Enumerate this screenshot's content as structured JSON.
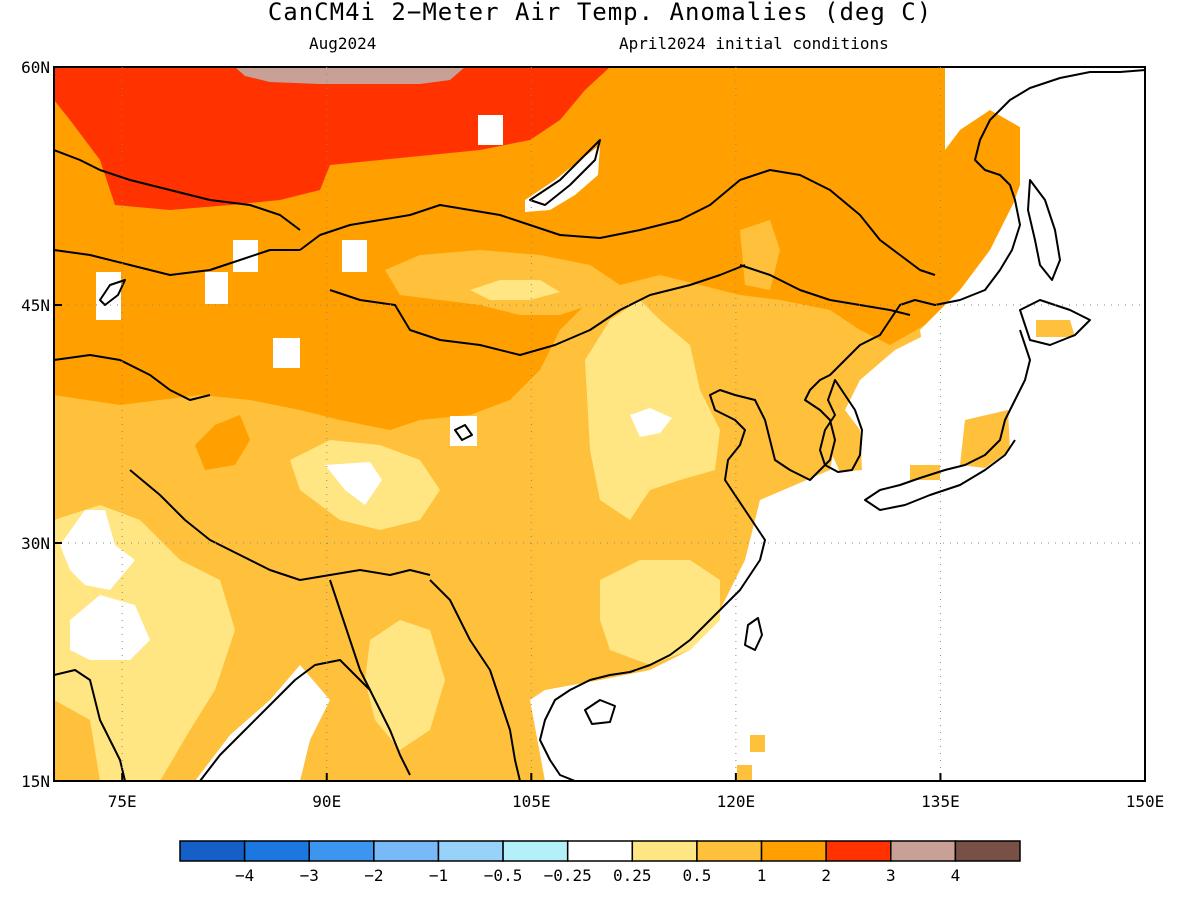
{
  "title": "CanCM4i 2−Meter Air Temp. Anomalies (deg C)",
  "subtitle_left": "Aug2024",
  "subtitle_right": "April2024 initial conditions",
  "map": {
    "lon_range": [
      70,
      150
    ],
    "lat_range": [
      15,
      60
    ],
    "lon_ticks": [
      {
        "lon": 75,
        "label": "75E"
      },
      {
        "lon": 90,
        "label": "90E"
      },
      {
        "lon": 105,
        "label": "105E"
      },
      {
        "lon": 120,
        "label": "120E"
      },
      {
        "lon": 135,
        "label": "135E"
      },
      {
        "lon": 150,
        "label": "150E"
      }
    ],
    "lat_ticks": [
      {
        "lat": 60,
        "label": "60N"
      },
      {
        "lat": 45,
        "label": "45N"
      },
      {
        "lat": 30,
        "label": "30N"
      },
      {
        "lat": 15,
        "label": "15N"
      }
    ],
    "gridlines": "dotted"
  },
  "colorbar": {
    "colors": [
      "#1560c8",
      "#1c78e0",
      "#3c96f0",
      "#78b9f8",
      "#96d2fa",
      "#b4f0fa",
      "#ffffff",
      "#ffe682",
      "#ffc03c",
      "#ffa000",
      "#ff3200",
      "#c8a096",
      "#785046"
    ],
    "labels": [
      "−4",
      "−3",
      "−2",
      "−1",
      "−0.5",
      "−0.25",
      "0.25",
      "0.5",
      "1",
      "2",
      "3",
      "4"
    ]
  },
  "colors": {
    "anomaly_0_25_0_5": "#ffe682",
    "anomaly_0_5_1": "#ffc03c",
    "anomaly_1_2": "#ffa000",
    "anomaly_2_3": "#ff3200",
    "anomaly_3_4": "#c8a096",
    "below_0_25": "#ffffff"
  }
}
